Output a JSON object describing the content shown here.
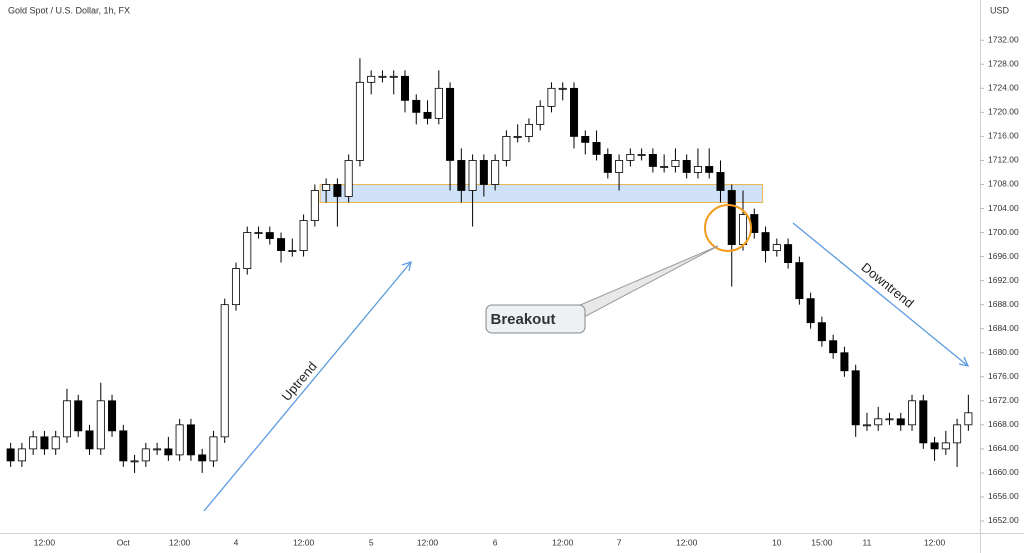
{
  "chart_data": {
    "type": "candlestick",
    "title": "Gold Spot / U.S. Dollar, 1h, FX",
    "y_axis_label": "USD",
    "categories": [
      null,
      null,
      null,
      "12:00",
      null,
      null,
      null,
      null,
      null,
      null,
      "Oct",
      null,
      null,
      null,
      null,
      "12:00",
      null,
      null,
      null,
      null,
      "4",
      null,
      null,
      null,
      null,
      null,
      "12:00",
      null,
      null,
      null,
      null,
      null,
      "5",
      null,
      null,
      null,
      null,
      "12:00",
      null,
      null,
      null,
      null,
      null,
      "6",
      null,
      null,
      null,
      null,
      null,
      "12:00",
      null,
      null,
      null,
      null,
      "7",
      null,
      null,
      null,
      null,
      null,
      "12:00",
      null,
      null,
      null,
      null,
      null,
      null,
      null,
      "10",
      null,
      null,
      null,
      "15:00",
      null,
      null,
      null,
      "11",
      null,
      null,
      null,
      null,
      null,
      "12:00",
      null,
      null,
      null
    ],
    "ohlc": [
      [
        1664,
        1665,
        1661,
        1662
      ],
      [
        1662,
        1665,
        1661,
        1664
      ],
      [
        1664,
        1667,
        1663,
        1666
      ],
      [
        1666,
        1667,
        1663,
        1664
      ],
      [
        1664,
        1667,
        1663,
        1666
      ],
      [
        1666,
        1674,
        1665,
        1672
      ],
      [
        1672,
        1673,
        1666,
        1667
      ],
      [
        1667,
        1668,
        1663,
        1664
      ],
      [
        1664,
        1675,
        1663,
        1672
      ],
      [
        1672,
        1673,
        1666,
        1667
      ],
      [
        1667,
        1668,
        1661,
        1662
      ],
      [
        1662,
        1663,
        1660,
        1662
      ],
      [
        1662,
        1665,
        1661,
        1664
      ],
      [
        1664,
        1665,
        1663,
        1664
      ],
      [
        1664,
        1666,
        1662,
        1663
      ],
      [
        1663,
        1669,
        1662,
        1668
      ],
      [
        1668,
        1669,
        1662,
        1663
      ],
      [
        1663,
        1664,
        1660,
        1662
      ],
      [
        1662,
        1667,
        1661,
        1666
      ],
      [
        1666,
        1689,
        1665,
        1688
      ],
      [
        1688,
        1695,
        1687,
        1694
      ],
      [
        1694,
        1701,
        1693,
        1700
      ],
      [
        1700,
        1701,
        1699,
        1700
      ],
      [
        1700,
        1701,
        1698,
        1699
      ],
      [
        1699,
        1700,
        1695,
        1697
      ],
      [
        1697,
        1699,
        1696,
        1697
      ],
      [
        1697,
        1703,
        1696,
        1702
      ],
      [
        1702,
        1708,
        1701,
        1707
      ],
      [
        1707,
        1709,
        1705,
        1708
      ],
      [
        1708,
        1709,
        1701,
        1706
      ],
      [
        1706,
        1713,
        1705,
        1712
      ],
      [
        1712,
        1729,
        1711,
        1725
      ],
      [
        1725,
        1727,
        1723,
        1726
      ],
      [
        1726,
        1727,
        1725,
        1726
      ],
      [
        1726,
        1727,
        1723,
        1726
      ],
      [
        1726,
        1727,
        1720,
        1722
      ],
      [
        1722,
        1723,
        1718,
        1720
      ],
      [
        1720,
        1722,
        1718,
        1719
      ],
      [
        1719,
        1727,
        1718,
        1724
      ],
      [
        1724,
        1725,
        1707,
        1712
      ],
      [
        1712,
        1714,
        1705,
        1707
      ],
      [
        1707,
        1713,
        1701,
        1712
      ],
      [
        1712,
        1713,
        1706,
        1708
      ],
      [
        1708,
        1713,
        1707,
        1712
      ],
      [
        1712,
        1717,
        1711,
        1716
      ],
      [
        1716,
        1718,
        1715,
        1716
      ],
      [
        1716,
        1719,
        1715,
        1718
      ],
      [
        1718,
        1722,
        1717,
        1721
      ],
      [
        1721,
        1725,
        1720,
        1724
      ],
      [
        1724,
        1725,
        1722,
        1724
      ],
      [
        1724,
        1725,
        1714,
        1716
      ],
      [
        1716,
        1717,
        1713,
        1715
      ],
      [
        1715,
        1717,
        1712,
        1713
      ],
      [
        1713,
        1714,
        1709,
        1710
      ],
      [
        1710,
        1713,
        1707,
        1712
      ],
      [
        1712,
        1714,
        1711,
        1713
      ],
      [
        1713,
        1714,
        1712,
        1713
      ],
      [
        1713,
        1714,
        1710,
        1711
      ],
      [
        1711,
        1713,
        1710,
        1711
      ],
      [
        1711,
        1714,
        1710,
        1712
      ],
      [
        1712,
        1713,
        1709,
        1710
      ],
      [
        1710,
        1714,
        1709,
        1711
      ],
      [
        1711,
        1714,
        1709,
        1710
      ],
      [
        1710,
        1712,
        1705,
        1707
      ],
      [
        1707,
        1708,
        1691,
        1698
      ],
      [
        1698,
        1707,
        1697,
        1703
      ],
      [
        1703,
        1704,
        1699,
        1700
      ],
      [
        1700,
        1701,
        1695,
        1697
      ],
      [
        1697,
        1699,
        1696,
        1698
      ],
      [
        1698,
        1699,
        1694,
        1695
      ],
      [
        1695,
        1696,
        1688,
        1689
      ],
      [
        1689,
        1690,
        1684,
        1685
      ],
      [
        1685,
        1686,
        1681,
        1682
      ],
      [
        1682,
        1683,
        1679,
        1680
      ],
      [
        1680,
        1681,
        1676,
        1677
      ],
      [
        1677,
        1678,
        1666,
        1668
      ],
      [
        1668,
        1670,
        1667,
        1668
      ],
      [
        1668,
        1671,
        1667,
        1669
      ],
      [
        1669,
        1670,
        1668,
        1669
      ],
      [
        1669,
        1670,
        1667,
        1668
      ],
      [
        1668,
        1673,
        1667,
        1672
      ],
      [
        1672,
        1673,
        1664,
        1665
      ],
      [
        1665,
        1666,
        1662,
        1664
      ],
      [
        1664,
        1667,
        1663,
        1665
      ],
      [
        1665,
        1669,
        1661,
        1668
      ],
      [
        1668,
        1673,
        1667,
        1670
      ]
    ],
    "up_color": "#ffffff",
    "down_color": "#000000",
    "outline_color": "#000000",
    "ylim": [
      1650,
      1738.7
    ],
    "yticks": [
      {
        "value": 1652,
        "label": "1652.00"
      },
      {
        "value": 1656,
        "label": "1656.00"
      },
      {
        "value": 1660,
        "label": "1660.00"
      },
      {
        "value": 1664,
        "label": "1664.00"
      },
      {
        "value": 1668,
        "label": "1668.00"
      },
      {
        "value": 1672,
        "label": "1672.00"
      },
      {
        "value": 1676,
        "label": "1676.00"
      },
      {
        "value": 1680,
        "label": "1680.00"
      },
      {
        "value": 1684,
        "label": "1684.00"
      },
      {
        "value": 1688,
        "label": "1688.00"
      },
      {
        "value": 1692,
        "label": "1692.00"
      },
      {
        "value": 1696,
        "label": "1696.00"
      },
      {
        "value": 1700,
        "label": "1700.00"
      },
      {
        "value": 1704,
        "label": "1704.00"
      },
      {
        "value": 1708,
        "label": "1708.00"
      },
      {
        "value": 1712,
        "label": "1712.00"
      },
      {
        "value": 1716,
        "label": "1716.00"
      },
      {
        "value": 1720,
        "label": "1720.00"
      },
      {
        "value": 1724,
        "label": "1724.00"
      },
      {
        "value": 1728,
        "label": "1728.00"
      },
      {
        "value": 1732,
        "label": "1732.00"
      }
    ],
    "grid": false,
    "zone": {
      "low": 1705,
      "high": 1708,
      "color": "#cfe2f7"
    },
    "annotations": [
      "Uptrend",
      "Downtrend",
      "Breakout"
    ]
  }
}
